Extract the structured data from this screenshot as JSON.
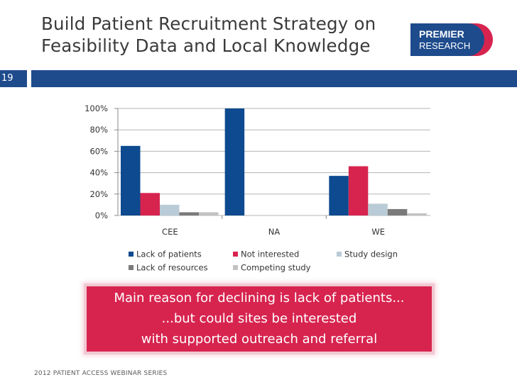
{
  "slide": {
    "title_line1": "Build Patient Recruitment Strategy on",
    "title_line2": "Feasibility Data and Local Knowledge",
    "slide_number": "19",
    "logo_line1": "PREMIER",
    "logo_line2": "RESEARCH",
    "callout_line1": "Main reason for declining is lack of patients...",
    "callout_line2": "...but could sites be interested",
    "callout_line3": "with supported outreach and referral",
    "footer": "2012 PATIENT ACCESS WEBINAR SERIES",
    "colors": {
      "band": "#1e4b8c",
      "logo_red": "#d7244f",
      "logo_blue": "#1e4b8c",
      "callout": "#d7244f"
    }
  },
  "chart_data": {
    "type": "bar",
    "categories": [
      "CEE",
      "NA",
      "WE"
    ],
    "series": [
      {
        "name": "Lack of patients",
        "color": "#0e4a8f",
        "values": [
          65,
          100,
          37
        ]
      },
      {
        "name": "Not interested",
        "color": "#d7244f",
        "values": [
          21,
          0,
          46
        ]
      },
      {
        "name": "Study design",
        "color": "#b9cbd6",
        "values": [
          10,
          0,
          11
        ]
      },
      {
        "name": "Lack of resources",
        "color": "#7a7a7a",
        "values": [
          3,
          0,
          6
        ]
      },
      {
        "name": "Competing study",
        "color": "#c2c2c2",
        "values": [
          3,
          0,
          2
        ]
      }
    ],
    "y_ticks": [
      "0%",
      "20%",
      "40%",
      "60%",
      "80%",
      "100%"
    ],
    "ylim": [
      0,
      100
    ],
    "grid": true,
    "legend": "bottom"
  }
}
